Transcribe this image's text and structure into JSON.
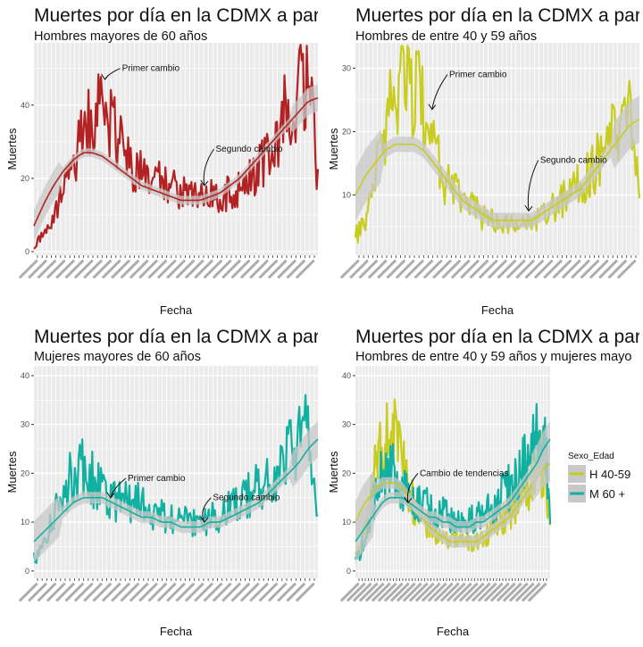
{
  "colors": {
    "h60": "#b22222",
    "h4059": "#c8cc1c",
    "m60": "#12b0a0",
    "smooth_band": "#c8c8c8",
    "panel_bg": "#ebebeb",
    "grid": "#ffffff"
  },
  "charts": [
    {
      "title": "Muertes por día en la CDMX a partir",
      "subtitle": "Hombres mayores de 60 años",
      "xlabel": "Fecha",
      "ylabel": "Muertes",
      "ylim": [
        -1,
        57
      ],
      "yticks": [
        0,
        20,
        40
      ],
      "annotations": [
        {
          "label": "Primer cambio",
          "x": 0.25,
          "y": 47,
          "tx": 0.31,
          "ty": 50
        },
        {
          "label": "Segundo cambio",
          "x": 0.6,
          "y": 18,
          "tx": 0.64,
          "ty": 28
        }
      ]
    },
    {
      "title": "Muertes por día en la CDMX a partir",
      "subtitle": "Hombres de entre 40 y 59 años",
      "xlabel": "Fecha",
      "ylabel": "Muertes",
      "ylim": [
        0.5,
        34
      ],
      "yticks": [
        10,
        20,
        30
      ],
      "annotations": [
        {
          "label": "Primer cambio",
          "x": 0.27,
          "y": 23.5,
          "tx": 0.33,
          "ty": 29
        },
        {
          "label": "Segundo cambio",
          "x": 0.61,
          "y": 7.5,
          "tx": 0.65,
          "ty": 15.5
        }
      ]
    },
    {
      "title": "Muertes por día en la CDMX a partir",
      "subtitle": "Mujeres mayores de 60 años",
      "xlabel": "Fecha",
      "ylabel": "Muertes",
      "ylim": [
        -1.5,
        42
      ],
      "yticks": [
        0,
        10,
        20,
        30,
        40
      ],
      "annotations": [
        {
          "label": "Primer cambio",
          "x": 0.27,
          "y": 15,
          "tx": 0.33,
          "ty": 19
        },
        {
          "label": "Segundo cambio",
          "x": 0.6,
          "y": 10,
          "tx": 0.63,
          "ty": 15
        }
      ]
    },
    {
      "title": "Muertes por día en la CDMX a partir",
      "subtitle": "Hombres de entre 40 y 59 años y mujeres mayo",
      "xlabel": "Fecha",
      "ylabel": "Muertes",
      "ylim": [
        -1.5,
        42
      ],
      "yticks": [
        0,
        10,
        20,
        30,
        40
      ],
      "annotations": [
        {
          "label": "Cambio de tendencias",
          "x": 0.27,
          "y": 14,
          "tx": 0.33,
          "ty": 20
        }
      ]
    }
  ],
  "legend": {
    "title": "Sexo_Edad",
    "items": [
      {
        "label": "H 40-59",
        "color": "#c8cc1c"
      },
      {
        "label": "M 60 +",
        "color": "#12b0a0"
      }
    ]
  },
  "chart_data": [
    {
      "type": "line",
      "series": [
        {
          "color": "#b22222",
          "values": [
            2,
            4,
            7,
            11,
            16,
            22,
            28,
            33,
            37,
            38,
            38,
            34,
            29,
            25,
            23,
            22,
            21,
            19,
            18,
            17,
            17,
            16,
            16,
            16,
            15,
            15,
            15,
            16,
            17,
            18,
            20,
            23,
            27,
            31,
            36,
            40,
            44,
            46,
            40,
            20
          ],
          "smooth": [
            7,
            13,
            18,
            22,
            25,
            27,
            27,
            26,
            24,
            22,
            20,
            18,
            17,
            16,
            15,
            14,
            14,
            14,
            15,
            16,
            18,
            20,
            23,
            26,
            29,
            32,
            35,
            38,
            41,
            42
          ]
        }
      ]
    },
    {
      "type": "line",
      "series": [
        {
          "color": "#c8cc1c",
          "values": [
            3,
            5,
            9,
            14,
            20,
            25,
            28,
            29,
            27,
            24,
            20,
            16,
            13,
            11,
            10,
            9,
            8,
            7,
            6,
            6,
            6,
            6,
            6,
            6,
            6,
            6,
            7,
            8,
            9,
            10,
            11,
            12,
            13,
            15,
            16,
            18,
            20,
            22,
            21,
            8
          ],
          "smooth": [
            10,
            13,
            15,
            17,
            18,
            18,
            18,
            17,
            15,
            13,
            11,
            9,
            8,
            7,
            6,
            6,
            6,
            6,
            6,
            7,
            8,
            9,
            10,
            11,
            13,
            15,
            17,
            19,
            21,
            22
          ]
        }
      ]
    },
    {
      "type": "line",
      "series": [
        {
          "color": "#12b0a0",
          "values": [
            2,
            4,
            8,
            12,
            16,
            19,
            21,
            21,
            19,
            17,
            16,
            15,
            14,
            14,
            14,
            13,
            12,
            12,
            11,
            11,
            10,
            10,
            10,
            10,
            11,
            11,
            12,
            13,
            14,
            15,
            16,
            17,
            18,
            20,
            22,
            24,
            26,
            28,
            26,
            12
          ],
          "smooth": [
            6,
            8,
            10,
            12,
            14,
            15,
            15,
            15,
            14,
            13,
            12,
            11,
            11,
            10,
            10,
            9,
            9,
            9,
            10,
            10,
            11,
            12,
            13,
            14,
            16,
            18,
            20,
            22,
            25,
            27
          ]
        }
      ]
    },
    {
      "type": "line",
      "series": [
        {
          "name": "H 40-59",
          "color": "#c8cc1c",
          "values": [
            3,
            5,
            9,
            14,
            20,
            25,
            28,
            29,
            27,
            24,
            20,
            16,
            13,
            11,
            10,
            9,
            8,
            7,
            6,
            6,
            6,
            6,
            6,
            6,
            6,
            6,
            7,
            8,
            9,
            10,
            11,
            12,
            13,
            15,
            16,
            18,
            20,
            22,
            21,
            8
          ],
          "smooth": [
            10,
            13,
            15,
            17,
            18,
            18,
            18,
            17,
            15,
            13,
            11,
            9,
            8,
            7,
            6,
            6,
            6,
            6,
            6,
            7,
            8,
            9,
            10,
            11,
            13,
            15,
            17,
            19,
            21,
            22
          ]
        },
        {
          "name": "M 60 +",
          "color": "#12b0a0",
          "values": [
            2,
            4,
            8,
            12,
            16,
            19,
            21,
            21,
            19,
            17,
            16,
            15,
            14,
            14,
            14,
            13,
            12,
            12,
            11,
            11,
            10,
            10,
            10,
            10,
            11,
            11,
            12,
            13,
            14,
            15,
            16,
            17,
            18,
            20,
            22,
            24,
            26,
            28,
            26,
            12
          ],
          "smooth": [
            6,
            8,
            10,
            12,
            14,
            15,
            15,
            15,
            14,
            13,
            12,
            11,
            11,
            10,
            10,
            9,
            9,
            9,
            10,
            10,
            11,
            12,
            13,
            14,
            16,
            18,
            20,
            22,
            25,
            27
          ]
        }
      ]
    }
  ]
}
